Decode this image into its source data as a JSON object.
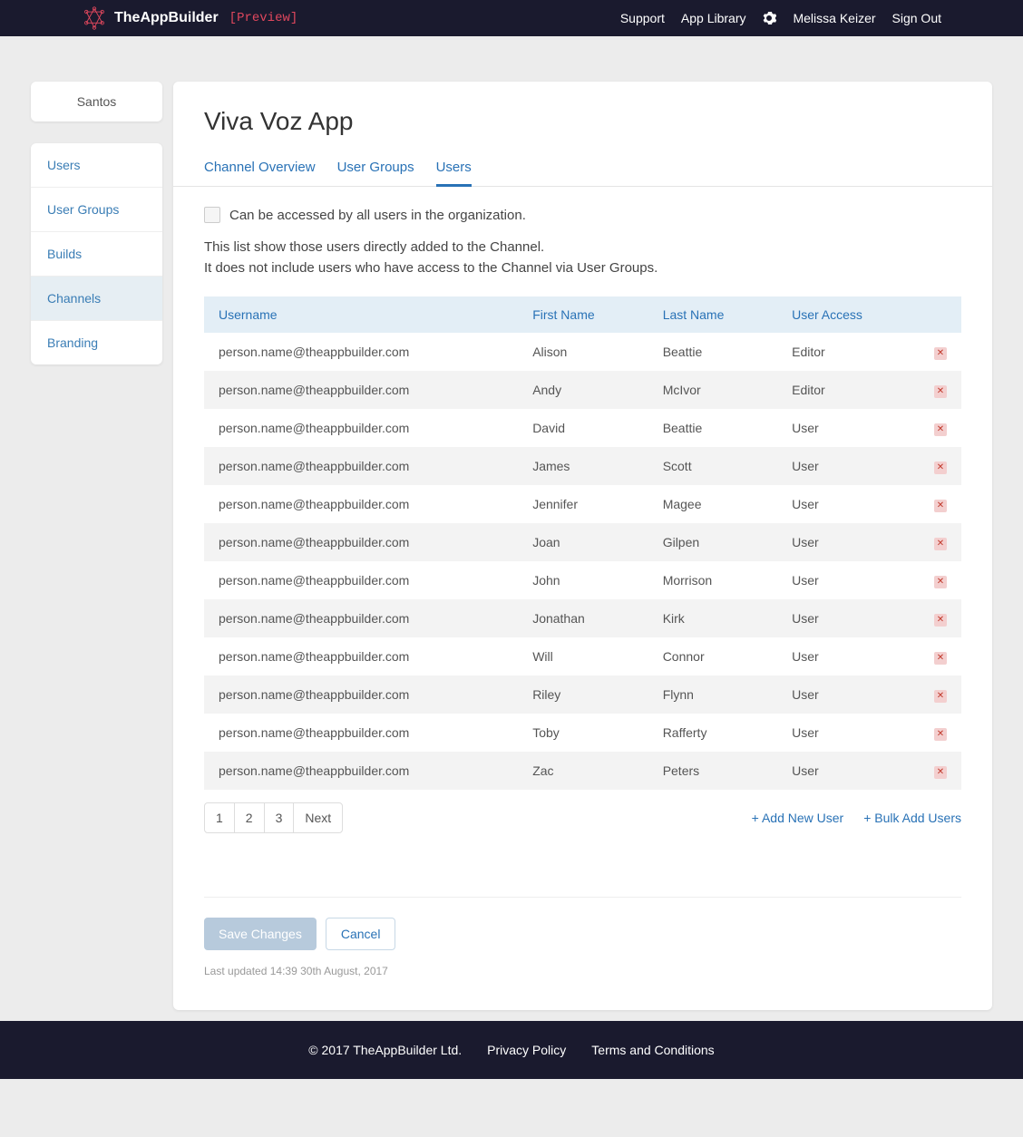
{
  "colors": {
    "topbar_bg": "#1a1a2e",
    "accent": "#2972b6",
    "accent_light_bg": "#e3eef6",
    "sidebar_active_bg": "#e6eef3",
    "page_bg": "#ececec",
    "preview_text": "#e0475d",
    "save_disabled_bg": "#b7cadc",
    "remove_bg": "#f3cfcf",
    "remove_fg": "#c0392b"
  },
  "header": {
    "brand": "TheAppBuilder",
    "preview": "[Preview]",
    "links": {
      "support": "Support",
      "app_library": "App Library",
      "user_name": "Melissa Keizer",
      "sign_out": "Sign Out"
    }
  },
  "sidebar": {
    "org": "Santos",
    "items": [
      {
        "label": "Users",
        "active": false
      },
      {
        "label": "User Groups",
        "active": false
      },
      {
        "label": "Builds",
        "active": false
      },
      {
        "label": "Channels",
        "active": true
      },
      {
        "label": "Branding",
        "active": false
      }
    ]
  },
  "main": {
    "title": "Viva Voz App",
    "tabs": [
      {
        "label": "Channel Overview",
        "active": false
      },
      {
        "label": "User Groups",
        "active": false
      },
      {
        "label": "Users",
        "active": true
      }
    ],
    "checkbox_label": "Can be accessed by all users in the organization.",
    "info_line1": "This list show those users directly added to the Channel.",
    "info_line2": "It does not include users who have access to the Channel via User Groups.",
    "table": {
      "columns": [
        "Username",
        "First Name",
        "Last Name",
        "User Access"
      ],
      "rows": [
        {
          "username": "person.name@theappbuilder.com",
          "first": "Alison",
          "last": "Beattie",
          "access": "Editor"
        },
        {
          "username": "person.name@theappbuilder.com",
          "first": "Andy",
          "last": "McIvor",
          "access": "Editor"
        },
        {
          "username": "person.name@theappbuilder.com",
          "first": "David",
          "last": "Beattie",
          "access": "User"
        },
        {
          "username": "person.name@theappbuilder.com",
          "first": "James",
          "last": "Scott",
          "access": "User"
        },
        {
          "username": "person.name@theappbuilder.com",
          "first": "Jennifer",
          "last": "Magee",
          "access": "User"
        },
        {
          "username": "person.name@theappbuilder.com",
          "first": "Joan",
          "last": "Gilpen",
          "access": "User"
        },
        {
          "username": "person.name@theappbuilder.com",
          "first": "John",
          "last": "Morrison",
          "access": "User"
        },
        {
          "username": "person.name@theappbuilder.com",
          "first": "Jonathan",
          "last": "Kirk",
          "access": "User"
        },
        {
          "username": "person.name@theappbuilder.com",
          "first": "Will",
          "last": "Connor",
          "access": "User"
        },
        {
          "username": "person.name@theappbuilder.com",
          "first": "Riley",
          "last": "Flynn",
          "access": "User"
        },
        {
          "username": "person.name@theappbuilder.com",
          "first": "Toby",
          "last": "Rafferty",
          "access": "User"
        },
        {
          "username": "person.name@theappbuilder.com",
          "first": "Zac",
          "last": "Peters",
          "access": "User"
        }
      ]
    },
    "pagination": {
      "pages": [
        "1",
        "2",
        "3"
      ],
      "next": "Next"
    },
    "add_user": "+ Add New User",
    "bulk_add": "+ Bulk Add Users",
    "save": "Save Changes",
    "cancel": "Cancel",
    "last_updated": "Last updated 14:39 30th August, 2017"
  },
  "footer": {
    "copyright": "© 2017 TheAppBuilder Ltd.",
    "privacy": "Privacy Policy",
    "terms": "Terms and Conditions"
  }
}
